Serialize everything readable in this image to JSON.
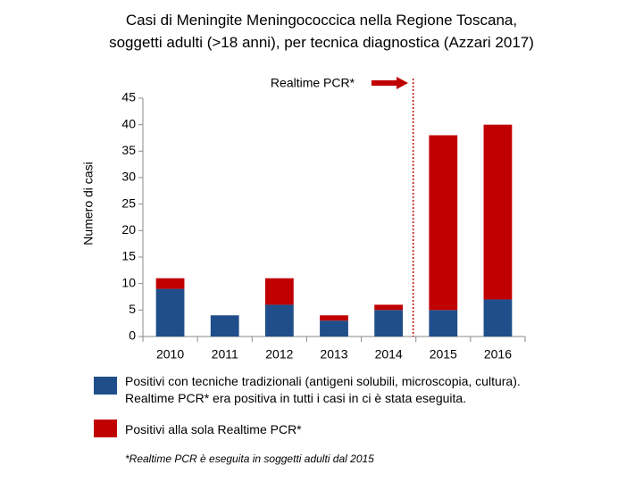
{
  "chart_data": {
    "type": "stacked_bar",
    "title": "Casi di Meningite Meningococcica nella Regione Toscana,\nsoggetti adulti (>18 anni), per tecnica  diagnostica (Azzari 2017)",
    "y_label": "Numero di casi",
    "categories": [
      "2010",
      "2011",
      "2012",
      "2013",
      "2014",
      "2015",
      "2016"
    ],
    "series": [
      {
        "name": "Positivi con tecniche tradizionali (antigeni solubili, microscopia, cultura).\nRealtime PCR* era positiva in tutti i casi in ci è stata eseguita.",
        "color": "#1f4e8a",
        "values": [
          9,
          4,
          6,
          3,
          5,
          5,
          7
        ]
      },
      {
        "name": "Positivi alla sola Realtime PCR*",
        "color": "#c00000",
        "values": [
          2,
          0,
          5,
          1,
          1,
          33,
          33
        ]
      }
    ],
    "ylim": [
      0,
      45
    ],
    "yticks": [
      0,
      5,
      10,
      15,
      20,
      25,
      30,
      35,
      40,
      45
    ],
    "grid": false,
    "annotation": "Realtime PCR*",
    "note": "*Realtime PCR è eseguita in soggetti adulti dal 2015"
  }
}
